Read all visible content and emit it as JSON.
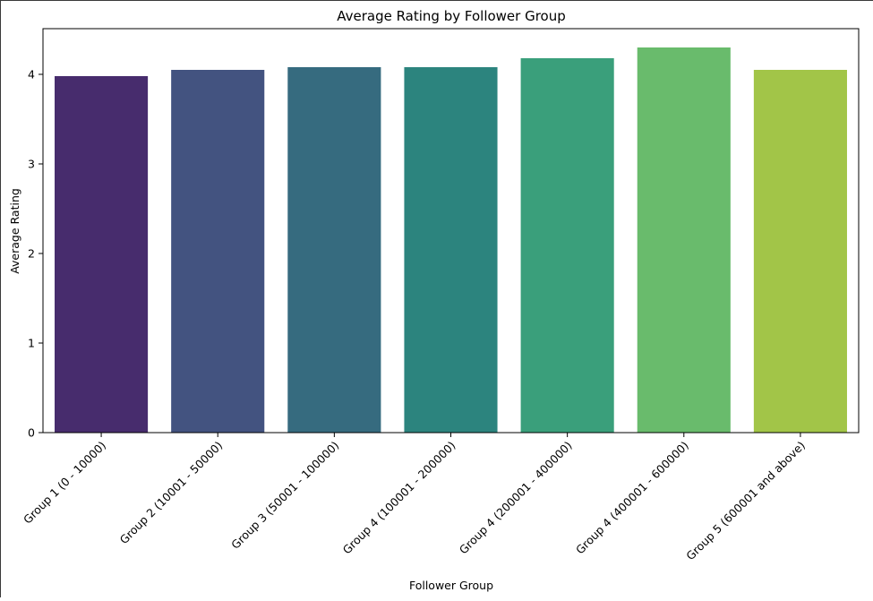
{
  "chart_data": {
    "type": "bar",
    "title": "Average Rating by Follower Group",
    "xlabel": "Follower Group",
    "ylabel": "Average Rating",
    "categories": [
      "Group 1 (0 - 10000)",
      "Group 2 (10001 - 50000)",
      "Group 3 (50001 - 100000)",
      "Group 4 (100001 - 200000)",
      "Group 4 (200001 - 400000)",
      "Group 4 (400001 - 600000)",
      "Group 5 (600001 and above)"
    ],
    "values": [
      3.98,
      4.05,
      4.08,
      4.08,
      4.18,
      4.3,
      4.05
    ],
    "colors": [
      "#472c6d",
      "#435380",
      "#366b7f",
      "#2c847e",
      "#3a9f7b",
      "#69bb6c",
      "#a2c548"
    ],
    "yticks": [
      0,
      1,
      2,
      3,
      4
    ],
    "ylim": [
      0,
      4.51
    ],
    "grid": false
  }
}
